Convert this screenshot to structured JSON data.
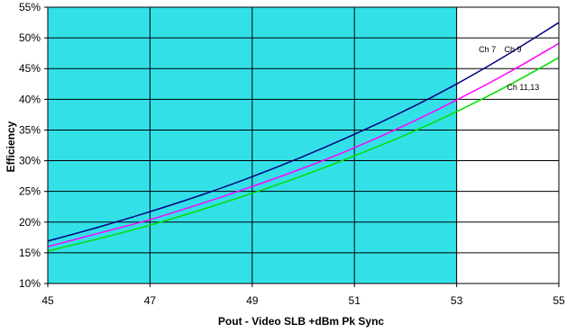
{
  "chart_data": {
    "type": "line",
    "title": "",
    "xlabel": "Pout - Video SLB +dBm Pk Sync",
    "ylabel": "Efficiency",
    "xlim": [
      45,
      55
    ],
    "ylim": [
      10,
      55
    ],
    "x_ticks": [
      45,
      47,
      49,
      51,
      53,
      55
    ],
    "x_tick_labels": [
      "45",
      "47",
      "49",
      "51",
      "53",
      "55"
    ],
    "y_ticks": [
      10,
      15,
      20,
      25,
      30,
      35,
      40,
      45,
      50,
      55
    ],
    "y_tick_labels": [
      "10%",
      "15%",
      "20%",
      "25%",
      "30%",
      "35%",
      "40%",
      "45%",
      "50%",
      "55%"
    ],
    "grid": true,
    "shaded_region": {
      "x_from": 45,
      "x_to": 53,
      "color": "#33e0e8"
    },
    "series": [
      {
        "name": "Ch 7",
        "color": "#000080",
        "x": [
          45,
          46,
          47,
          48,
          49,
          50,
          51,
          52,
          53,
          54,
          55
        ],
        "values": [
          16.9,
          19.2,
          21.7,
          24.4,
          27.4,
          30.7,
          34.3,
          38.2,
          42.5,
          47.3,
          52.5
        ]
      },
      {
        "name": "Ch 9",
        "color": "#ff00ff",
        "x": [
          45,
          46,
          47,
          48,
          49,
          50,
          51,
          52,
          53,
          54,
          55
        ],
        "values": [
          16.0,
          18.2,
          20.4,
          23.0,
          25.8,
          28.8,
          32.1,
          35.8,
          39.9,
          44.3,
          49.1
        ]
      },
      {
        "name": "Ch 11,13",
        "color": "#00e000",
        "x": [
          45,
          46,
          47,
          48,
          49,
          50,
          51,
          52,
          53,
          54,
          55
        ],
        "values": [
          15.3,
          17.3,
          19.5,
          22.0,
          24.7,
          27.6,
          30.8,
          34.2,
          38.0,
          42.2,
          46.8
        ]
      }
    ],
    "annotations": [
      {
        "text": "Ch 7",
        "x": 53.6,
        "y": 47.7
      },
      {
        "text": "Ch 9",
        "x": 54.1,
        "y": 47.7
      },
      {
        "text": "Ch 11,13",
        "x": 54.3,
        "y": 41.5
      }
    ]
  }
}
